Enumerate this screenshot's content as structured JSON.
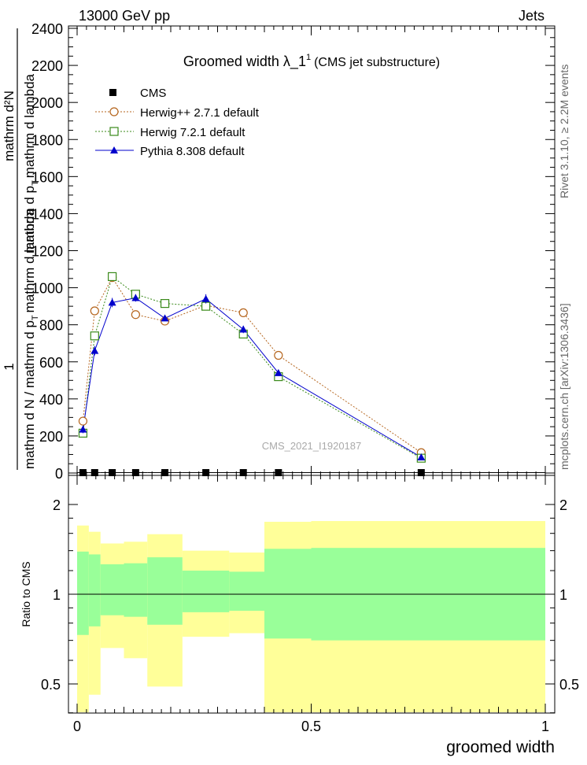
{
  "header": {
    "left": "13000 GeV pp",
    "right": "Jets"
  },
  "side_labels": {
    "rivet": "Rivet 3.1.10, ≥ 2.2M events",
    "mcplots": "mcplots.cern.ch [arXiv:1306.3436]"
  },
  "chart_data": [
    {
      "type": "line",
      "title": "Groomed width  λ_1",
      "title_sup": "1",
      "title_suffix": "(CMS jet substructure)",
      "watermark": "CMS_2021_I1920187",
      "ylabel": {
        "num": "1",
        "den": "mathrm d N / mathrm d p_T mathrm d lambda",
        "den2": "mathrm d²N",
        "den3": "mathrm d p_T mathrm d lambda"
      },
      "ylabel_lines": [
        "1",
        "mathrm d N / mathrm d p",
        "T",
        "mathrm d lambda",
        "mathrm d²N",
        "mathrm d p",
        "T",
        "mathrm d lambda"
      ],
      "xlim": [
        -0.02,
        1.02
      ],
      "ylim": [
        0,
        2450
      ],
      "yticks": [
        0,
        200,
        400,
        600,
        800,
        1000,
        1200,
        1400,
        1600,
        1800,
        2000,
        2200,
        2400
      ],
      "ytick_labels": [
        "0",
        "200",
        "400",
        "600",
        "800",
        "1000",
        "1200",
        "1400",
        "1600",
        "1800",
        "2000",
        "2200",
        "2400"
      ],
      "legend_position": "top-left",
      "bin_edges": [
        0,
        0.025,
        0.05,
        0.1,
        0.15,
        0.225,
        0.325,
        0.4,
        0.5,
        1.0
      ],
      "series": [
        {
          "name": "CMS",
          "style": "data",
          "color": "#000000",
          "x": [
            0.0125,
            0.0375,
            0.075,
            0.125,
            0.1875,
            0.275,
            0.355,
            0.43,
            0.735
          ],
          "y": [
            2,
            2,
            2,
            2,
            2,
            2,
            2,
            2,
            2
          ]
        },
        {
          "name": "Herwig++ 2.7.1 default",
          "style": "dotted-circle",
          "color": "#b5651d",
          "x": [
            0.0125,
            0.0375,
            0.075,
            0.125,
            0.1875,
            0.275,
            0.355,
            0.43,
            0.735
          ],
          "y": [
            280,
            875,
            1055,
            855,
            820,
            905,
            865,
            635,
            110
          ]
        },
        {
          "name": "Herwig 7.2.1 default",
          "style": "dotted-square",
          "color": "#3a8a1a",
          "x": [
            0.0125,
            0.0375,
            0.075,
            0.125,
            0.1875,
            0.275,
            0.355,
            0.43,
            0.735
          ],
          "y": [
            215,
            740,
            1060,
            965,
            915,
            900,
            750,
            520,
            80
          ]
        },
        {
          "name": "Pythia 8.308 default",
          "style": "solid-triangle",
          "color": "#0000cc",
          "x": [
            0.0125,
            0.0375,
            0.075,
            0.125,
            0.1875,
            0.275,
            0.355,
            0.43,
            0.735
          ],
          "y": [
            235,
            660,
            920,
            945,
            835,
            940,
            775,
            540,
            85
          ],
          "yerr": [
            20,
            25,
            25,
            20,
            15,
            25,
            20,
            15,
            5
          ]
        }
      ]
    },
    {
      "type": "area",
      "ylabel": "Ratio to CMS",
      "xlabel": "groomed width",
      "xlim": [
        -0.02,
        1.02
      ],
      "ylim": [
        0.35,
        2.35
      ],
      "yticks": [
        0.5,
        1,
        2
      ],
      "ytick_labels": [
        "0.5",
        "1",
        "2"
      ],
      "xticks": [
        0,
        0.5,
        1
      ],
      "xtick_labels": [
        "0",
        "0.5",
        "1"
      ],
      "reference": 1,
      "bands": [
        {
          "x0": 0.0,
          "x1": 0.025,
          "green": [
            0.73,
            1.39
          ],
          "yellow": [
            0.36,
            1.7
          ]
        },
        {
          "x0": 0.025,
          "x1": 0.05,
          "green": [
            0.78,
            1.36
          ],
          "yellow": [
            0.46,
            1.62
          ]
        },
        {
          "x0": 0.05,
          "x1": 0.1,
          "green": [
            0.85,
            1.26
          ],
          "yellow": [
            0.66,
            1.48
          ]
        },
        {
          "x0": 0.1,
          "x1": 0.15,
          "green": [
            0.84,
            1.27
          ],
          "yellow": [
            0.61,
            1.5
          ]
        },
        {
          "x0": 0.15,
          "x1": 0.225,
          "green": [
            0.79,
            1.33
          ],
          "yellow": [
            0.49,
            1.59
          ]
        },
        {
          "x0": 0.225,
          "x1": 0.325,
          "green": [
            0.87,
            1.2
          ],
          "yellow": [
            0.72,
            1.4
          ]
        },
        {
          "x0": 0.325,
          "x1": 0.4,
          "green": [
            0.88,
            1.19
          ],
          "yellow": [
            0.74,
            1.38
          ]
        },
        {
          "x0": 0.4,
          "x1": 0.5,
          "green": [
            0.71,
            1.42
          ],
          "yellow": [
            0.35,
            1.75
          ]
        },
        {
          "x0": 0.5,
          "x1": 1.0,
          "green": [
            0.7,
            1.43
          ],
          "yellow": [
            0.35,
            1.76
          ]
        }
      ],
      "colors": {
        "green": "#99ff99",
        "yellow": "#ffff99"
      }
    }
  ]
}
